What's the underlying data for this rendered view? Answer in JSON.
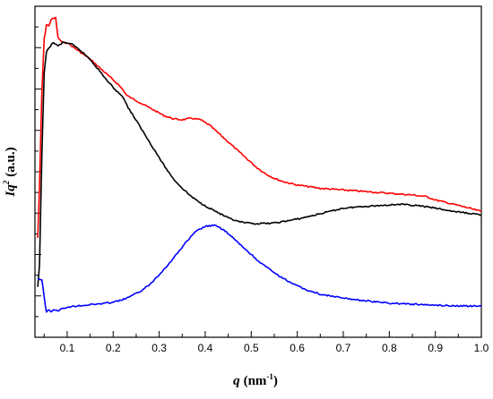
{
  "chart_data": {
    "type": "line",
    "title": "",
    "xlabel": {
      "symbol": "q",
      "unit": "(nm",
      "exponent": "-1",
      "close": ")"
    },
    "ylabel": {
      "symbol": "Iq",
      "exponent": "2",
      "unit": "(a.u.)"
    },
    "xlim": [
      0.03,
      1.0
    ],
    "ylim": [
      0,
      1
    ],
    "x_ticks": [
      0.1,
      0.2,
      0.3,
      0.4,
      0.5,
      0.6,
      0.7,
      0.8,
      0.9,
      1.0
    ],
    "x_tick_labels": [
      "0.1",
      "0.2",
      "0.3",
      "0.4",
      "0.5",
      "0.6",
      "0.7",
      "0.8",
      "0.9",
      "1.0"
    ],
    "y_tick_labels_shown": false,
    "grid": false,
    "legend": "none",
    "series": [
      {
        "color": "#ff0000",
        "points": [
          [
            0.036,
            0.3
          ],
          [
            0.04,
            0.46
          ],
          [
            0.045,
            0.74
          ],
          [
            0.05,
            0.9
          ],
          [
            0.055,
            0.945
          ],
          [
            0.06,
            0.94
          ],
          [
            0.065,
            0.96
          ],
          [
            0.075,
            0.965
          ],
          [
            0.08,
            0.905
          ],
          [
            0.09,
            0.89
          ],
          [
            0.1,
            0.89
          ],
          [
            0.11,
            0.88
          ],
          [
            0.13,
            0.86
          ],
          [
            0.15,
            0.84
          ],
          [
            0.17,
            0.815
          ],
          [
            0.19,
            0.79
          ],
          [
            0.21,
            0.765
          ],
          [
            0.22,
            0.75
          ],
          [
            0.23,
            0.73
          ],
          [
            0.25,
            0.715
          ],
          [
            0.27,
            0.7
          ],
          [
            0.29,
            0.685
          ],
          [
            0.31,
            0.67
          ],
          [
            0.33,
            0.66
          ],
          [
            0.35,
            0.657
          ],
          [
            0.37,
            0.662
          ],
          [
            0.39,
            0.657
          ],
          [
            0.41,
            0.64
          ],
          [
            0.43,
            0.615
          ],
          [
            0.45,
            0.59
          ],
          [
            0.47,
            0.565
          ],
          [
            0.49,
            0.54
          ],
          [
            0.51,
            0.515
          ],
          [
            0.53,
            0.495
          ],
          [
            0.55,
            0.48
          ],
          [
            0.57,
            0.47
          ],
          [
            0.6,
            0.46
          ],
          [
            0.65,
            0.45
          ],
          [
            0.7,
            0.445
          ],
          [
            0.75,
            0.44
          ],
          [
            0.8,
            0.435
          ],
          [
            0.85,
            0.43
          ],
          [
            0.88,
            0.425
          ],
          [
            0.9,
            0.415
          ],
          [
            0.93,
            0.405
          ],
          [
            0.96,
            0.395
          ],
          [
            1.0,
            0.38
          ]
        ]
      },
      {
        "color": "#000000",
        "points": [
          [
            0.036,
            0.15
          ],
          [
            0.04,
            0.22
          ],
          [
            0.045,
            0.55
          ],
          [
            0.05,
            0.8
          ],
          [
            0.055,
            0.86
          ],
          [
            0.06,
            0.875
          ],
          [
            0.07,
            0.89
          ],
          [
            0.08,
            0.88
          ],
          [
            0.09,
            0.89
          ],
          [
            0.1,
            0.89
          ],
          [
            0.11,
            0.885
          ],
          [
            0.13,
            0.865
          ],
          [
            0.15,
            0.84
          ],
          [
            0.17,
            0.805
          ],
          [
            0.19,
            0.77
          ],
          [
            0.21,
            0.74
          ],
          [
            0.22,
            0.73
          ],
          [
            0.23,
            0.7
          ],
          [
            0.25,
            0.655
          ],
          [
            0.27,
            0.61
          ],
          [
            0.29,
            0.565
          ],
          [
            0.31,
            0.52
          ],
          [
            0.33,
            0.48
          ],
          [
            0.35,
            0.45
          ],
          [
            0.37,
            0.425
          ],
          [
            0.39,
            0.405
          ],
          [
            0.41,
            0.39
          ],
          [
            0.43,
            0.375
          ],
          [
            0.45,
            0.36
          ],
          [
            0.47,
            0.35
          ],
          [
            0.49,
            0.345
          ],
          [
            0.51,
            0.343
          ],
          [
            0.53,
            0.344
          ],
          [
            0.55,
            0.345
          ],
          [
            0.58,
            0.352
          ],
          [
            0.61,
            0.36
          ],
          [
            0.64,
            0.37
          ],
          [
            0.67,
            0.38
          ],
          [
            0.7,
            0.39
          ],
          [
            0.74,
            0.395
          ],
          [
            0.78,
            0.398
          ],
          [
            0.82,
            0.402
          ],
          [
            0.86,
            0.398
          ],
          [
            0.9,
            0.39
          ],
          [
            0.94,
            0.38
          ],
          [
            0.97,
            0.375
          ],
          [
            1.0,
            0.37
          ]
        ]
      },
      {
        "color": "#0000ff",
        "points": [
          [
            0.036,
            0.175
          ],
          [
            0.045,
            0.175
          ],
          [
            0.05,
            0.12
          ],
          [
            0.055,
            0.075
          ],
          [
            0.06,
            0.085
          ],
          [
            0.065,
            0.075
          ],
          [
            0.07,
            0.085
          ],
          [
            0.08,
            0.078
          ],
          [
            0.09,
            0.088
          ],
          [
            0.1,
            0.09
          ],
          [
            0.12,
            0.095
          ],
          [
            0.14,
            0.097
          ],
          [
            0.16,
            0.1
          ],
          [
            0.18,
            0.102
          ],
          [
            0.2,
            0.106
          ],
          [
            0.22,
            0.113
          ],
          [
            0.24,
            0.125
          ],
          [
            0.26,
            0.14
          ],
          [
            0.28,
            0.16
          ],
          [
            0.3,
            0.19
          ],
          [
            0.32,
            0.22
          ],
          [
            0.34,
            0.255
          ],
          [
            0.36,
            0.29
          ],
          [
            0.38,
            0.32
          ],
          [
            0.4,
            0.335
          ],
          [
            0.42,
            0.338
          ],
          [
            0.44,
            0.325
          ],
          [
            0.46,
            0.3
          ],
          [
            0.48,
            0.275
          ],
          [
            0.5,
            0.25
          ],
          [
            0.52,
            0.225
          ],
          [
            0.54,
            0.205
          ],
          [
            0.56,
            0.185
          ],
          [
            0.58,
            0.17
          ],
          [
            0.6,
            0.155
          ],
          [
            0.62,
            0.143
          ],
          [
            0.65,
            0.13
          ],
          [
            0.7,
            0.118
          ],
          [
            0.75,
            0.11
          ],
          [
            0.8,
            0.103
          ],
          [
            0.85,
            0.1
          ],
          [
            0.9,
            0.097
          ],
          [
            0.95,
            0.095
          ],
          [
            1.0,
            0.094
          ]
        ]
      }
    ]
  }
}
